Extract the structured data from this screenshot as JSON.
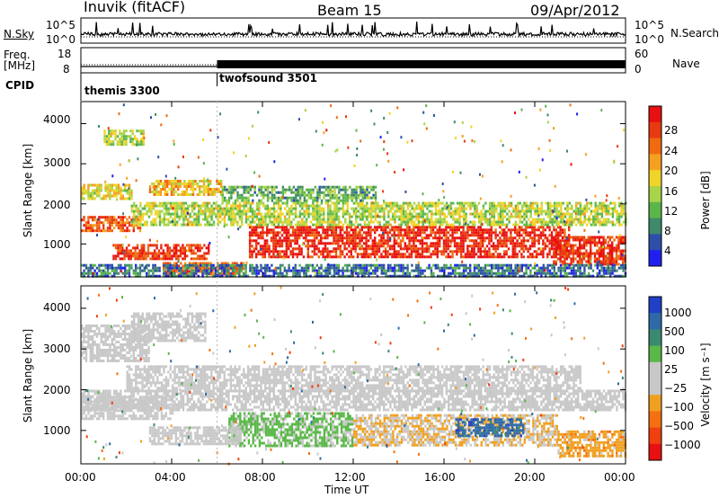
{
  "header": {
    "station": "Inuvik (fitACF)",
    "beam": "Beam 15",
    "date": "09/Apr/2012"
  },
  "left_labels": {
    "nsky": "N.Sky",
    "freq": "Freq.",
    "freq_unit": "[MHz]",
    "cpid": "CPID"
  },
  "right_labels": {
    "nsearch": "N.Search",
    "nave": "Nave"
  },
  "noise_axis": {
    "top": "10^5",
    "bottom": "10^0"
  },
  "freq_axis": {
    "top": "18",
    "bottom": "8"
  },
  "nave_axis": {
    "top": "60",
    "bottom": "0"
  },
  "cpid": [
    {
      "label": "themis 3300",
      "start_hour": 0,
      "end_hour": 6
    },
    {
      "label": "twofsound 3501",
      "start_hour": 6,
      "end_hour": 24
    }
  ],
  "x_axis": {
    "label": "Time UT",
    "ticks": [
      "00:00",
      "04:00",
      "08:00",
      "12:00",
      "16:00",
      "20:00",
      "00:00"
    ]
  },
  "y_axis": {
    "label": "Slant Range [km]",
    "ticks": [
      "1000",
      "2000",
      "3000",
      "4000"
    ]
  },
  "power_bar": {
    "title": "Power [dB]",
    "ticks": [
      "4",
      "8",
      "12",
      "16",
      "20",
      "24",
      "28"
    ],
    "colors": [
      "#1f1ff0",
      "#2e4fa8",
      "#3f8a6a",
      "#5bb64a",
      "#a8d44a",
      "#f0d428",
      "#f5a020",
      "#f06a10",
      "#e83a10",
      "#e81010"
    ]
  },
  "velocity_bar": {
    "title": "Velocity [m s⁻¹]",
    "ticks": [
      "1000",
      "500",
      "100",
      "25",
      "−25",
      "−100",
      "−500",
      "−1000"
    ],
    "colors": [
      "#2040c8",
      "#2f6aa8",
      "#3a8a72",
      "#5ab848",
      "#c8c8c8",
      "#c8c8c8",
      "#f0a020",
      "#f57010",
      "#f04010",
      "#e81010"
    ]
  },
  "chart_data": [
    {
      "type": "heatmap",
      "title": "Power [dB]",
      "xlabel": "Time UT",
      "ylabel": "Slant Range [km]",
      "xlim": [
        0,
        24
      ],
      "ylim": [
        180,
        4550
      ],
      "clim": [
        0,
        30
      ],
      "bands": [
        {
          "t0": 0,
          "t1": 2.6,
          "r0": 1350,
          "r1": 1700,
          "value": 24
        },
        {
          "t0": 1.4,
          "t1": 5.6,
          "r0": 600,
          "r1": 1000,
          "value": 26
        },
        {
          "t0": 3.6,
          "t1": 7.2,
          "r0": 250,
          "r1": 550,
          "value": 23
        },
        {
          "t0": 3.0,
          "t1": 6.2,
          "r0": 2200,
          "r1": 2600,
          "value": 18
        },
        {
          "t0": 7.4,
          "t1": 21.5,
          "r0": 650,
          "r1": 1450,
          "value": 27
        },
        {
          "t0": 2.2,
          "t1": 24,
          "r0": 1500,
          "r1": 2050,
          "value": 14
        },
        {
          "t0": 6.2,
          "t1": 13,
          "r0": 2050,
          "r1": 2450,
          "value": 10
        },
        {
          "t0": 20.8,
          "t1": 24,
          "r0": 500,
          "r1": 1200,
          "value": 26
        },
        {
          "t0": 0,
          "t1": 2.2,
          "r0": 2100,
          "r1": 2500,
          "value": 16
        },
        {
          "t0": 1,
          "t1": 2.8,
          "r0": 3500,
          "r1": 3850,
          "value": 14
        },
        {
          "t0": 0,
          "t1": 24,
          "r0": 200,
          "r1": 500,
          "value": 6
        }
      ]
    },
    {
      "type": "heatmap",
      "title": "Velocity [m s⁻¹]",
      "xlabel": "Time UT",
      "ylabel": "Slant Range [km]",
      "xlim": [
        0,
        24
      ],
      "ylim": [
        180,
        4550
      ],
      "clim": [
        -1000,
        1000
      ],
      "bands": [
        {
          "t0": 2.0,
          "t1": 22,
          "r0": 2000,
          "r1": 2600,
          "value": 0
        },
        {
          "t0": 0,
          "t1": 3.0,
          "r0": 2700,
          "r1": 3600,
          "value": 0
        },
        {
          "t0": 2.2,
          "t1": 5.5,
          "r0": 3200,
          "r1": 3900,
          "value": 0
        },
        {
          "t0": 0,
          "t1": 4.0,
          "r0": 1300,
          "r1": 1850,
          "value": 0
        },
        {
          "t0": 6.5,
          "t1": 12,
          "r0": 650,
          "r1": 1450,
          "value": 250
        },
        {
          "t0": 12,
          "t1": 21,
          "r0": 650,
          "r1": 1400,
          "value": -200
        },
        {
          "t0": 16.5,
          "t1": 19.5,
          "r0": 900,
          "r1": 1300,
          "value": 700
        },
        {
          "t0": 3.0,
          "t1": 7.0,
          "r0": 700,
          "r1": 1100,
          "value": 60
        },
        {
          "t0": 0,
          "t1": 24,
          "r0": 1500,
          "r1": 2000,
          "value": 0
        },
        {
          "t0": 21,
          "t1": 24,
          "r0": 400,
          "r1": 1000,
          "value": -300
        }
      ]
    }
  ]
}
